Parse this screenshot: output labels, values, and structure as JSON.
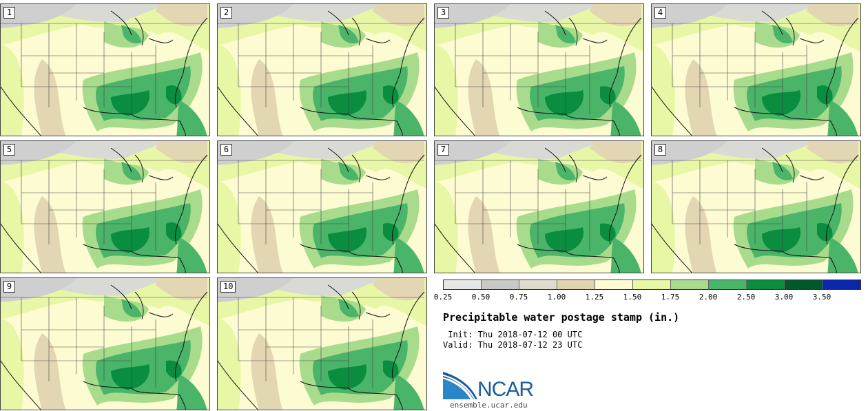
{
  "panels": [
    {
      "label": "1"
    },
    {
      "label": "2"
    },
    {
      "label": "3"
    },
    {
      "label": "4"
    },
    {
      "label": "5"
    },
    {
      "label": "6"
    },
    {
      "label": "7"
    },
    {
      "label": "8"
    },
    {
      "label": "9"
    },
    {
      "label": "10"
    }
  ],
  "colorbar": {
    "ticks": [
      "0.25",
      "0.50",
      "0.75",
      "1.00",
      "1.25",
      "1.50",
      "1.75",
      "2.00",
      "2.50",
      "3.00",
      "3.50"
    ],
    "colors": [
      "#e6e6e6",
      "#c8c8c8",
      "#e0dccd",
      "#e0d3b0",
      "#fdfbd2",
      "#e7f7a6",
      "#a8dc8c",
      "#4ab469",
      "#0a8d3f",
      "#00582b",
      "#0a27a8"
    ]
  },
  "title": "Precipitable water postage stamp (in.)",
  "init": " Init: Thu 2018-07-12 00 UTC",
  "valid": "Valid: Thu 2018-07-12 23 UTC",
  "logo_text": "NCAR",
  "site": "ensemble.ucar.edu"
}
